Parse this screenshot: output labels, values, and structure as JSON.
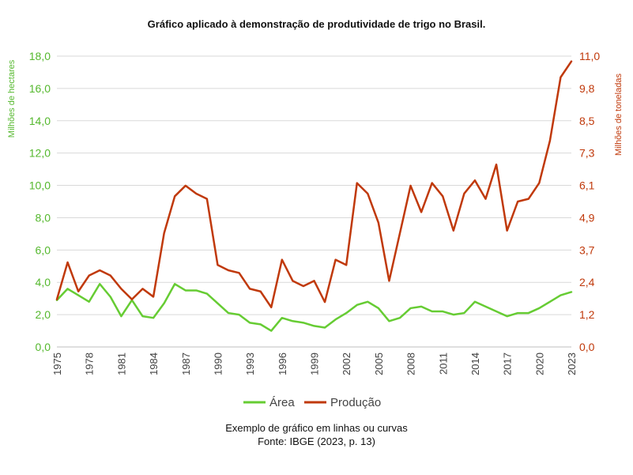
{
  "caption": {
    "line1": "Exemplo de gráfico em linhas ou curvas",
    "line2": "Fonte: IBGE (2023, p. 13)"
  },
  "chart_data": {
    "type": "line",
    "title": "Gráfico aplicado à demonstração de produtividade de trigo no Brasil.",
    "xlabel": "",
    "ylabel_left": "Milhões de hectares",
    "ylabel_right": "Milhões de toneladas",
    "ylim_left": [
      0,
      18
    ],
    "ylim_right": [
      0,
      11
    ],
    "yticks_left": [
      "0,0",
      "2,0",
      "4,0",
      "6,0",
      "8,0",
      "10,0",
      "12,0",
      "14,0",
      "16,0",
      "18,0"
    ],
    "yticks_right": [
      "0,0",
      "1,2",
      "2,4",
      "3,7",
      "4,9",
      "6,1",
      "7,3",
      "8,5",
      "9,8",
      "11,0"
    ],
    "xticks": [
      "1975",
      "1978",
      "1981",
      "1984",
      "1987",
      "1990",
      "1993",
      "1996",
      "1999",
      "2002",
      "2005",
      "2008",
      "2011",
      "2014",
      "2017",
      "2020",
      "2023"
    ],
    "grid": "horizontal",
    "legend_position": "bottom",
    "x": [
      1975,
      1976,
      1977,
      1978,
      1979,
      1980,
      1981,
      1982,
      1983,
      1984,
      1985,
      1986,
      1987,
      1988,
      1989,
      1990,
      1991,
      1992,
      1993,
      1994,
      1995,
      1996,
      1997,
      1998,
      1999,
      2000,
      2001,
      2002,
      2003,
      2004,
      2005,
      2006,
      2007,
      2008,
      2009,
      2010,
      2011,
      2012,
      2013,
      2014,
      2015,
      2016,
      2017,
      2018,
      2019,
      2020,
      2021,
      2022,
      2023
    ],
    "series": [
      {
        "name": "Área",
        "axis": "left",
        "color": "#66cc33",
        "values": [
          2.9,
          3.6,
          3.2,
          2.8,
          3.9,
          3.1,
          1.9,
          2.9,
          1.9,
          1.8,
          2.7,
          3.9,
          3.5,
          3.5,
          3.3,
          2.7,
          2.1,
          2.0,
          1.5,
          1.4,
          1.0,
          1.8,
          1.6,
          1.5,
          1.3,
          1.2,
          1.7,
          2.1,
          2.6,
          2.8,
          2.4,
          1.6,
          1.8,
          2.4,
          2.5,
          2.2,
          2.2,
          2.0,
          2.1,
          2.8,
          2.5,
          2.2,
          1.9,
          2.1,
          2.1,
          2.4,
          2.8,
          3.2,
          3.4
        ]
      },
      {
        "name": "Produção",
        "axis": "right",
        "color": "#c0390b",
        "values": [
          1.8,
          3.2,
          2.1,
          2.7,
          2.9,
          2.7,
          2.2,
          1.8,
          2.2,
          1.9,
          4.3,
          5.7,
          6.1,
          5.8,
          5.6,
          3.1,
          2.9,
          2.8,
          2.2,
          2.1,
          1.5,
          3.3,
          2.5,
          2.3,
          2.5,
          1.7,
          3.3,
          3.1,
          6.2,
          5.8,
          4.7,
          2.5,
          4.3,
          6.1,
          5.1,
          6.2,
          5.7,
          4.4,
          5.8,
          6.3,
          5.6,
          6.9,
          4.4,
          5.5,
          5.6,
          6.2,
          7.8,
          10.2,
          10.8
        ]
      }
    ]
  }
}
